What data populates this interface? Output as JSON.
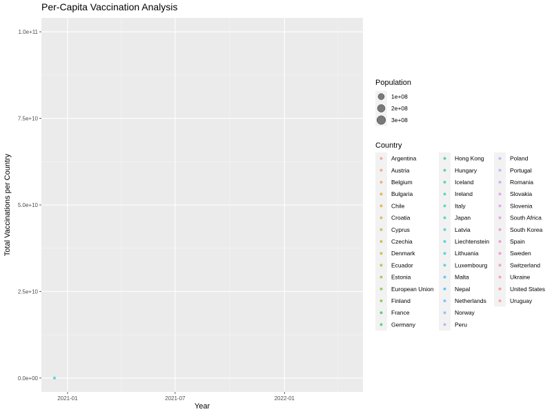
{
  "chart_data": {
    "type": "scatter",
    "title": "Per-Capita Vaccination Analysis",
    "xlabel": "Year",
    "ylabel": "Total Vaccinations per Country",
    "x_ticks": [
      "2021-01",
      "2021-07",
      "2022-01"
    ],
    "y_ticks": [
      "0.0e+00",
      "2.5e+10",
      "5.0e+10",
      "7.5e+10",
      "1.0e+11"
    ],
    "ylim": [
      0,
      100000000000
    ],
    "xlim": [
      "2020-11-18",
      "2022-05-13"
    ],
    "grid": true,
    "legend_position": "right",
    "points": [
      {
        "x": "2020-12-10",
        "y": 0,
        "country": "Liechtenstein"
      }
    ],
    "size_legend": {
      "title": "Population",
      "labels": [
        "1e+08",
        "2e+08",
        "3e+08"
      ]
    },
    "color_legend": {
      "title": "Country",
      "entries": [
        {
          "label": "Argentina",
          "color": "#F8766D"
        },
        {
          "label": "Austria",
          "color": "#F27D52"
        },
        {
          "label": "Belgium",
          "color": "#EA8331"
        },
        {
          "label": "Bulgaria",
          "color": "#E18A00"
        },
        {
          "label": "Chile",
          "color": "#D89000"
        },
        {
          "label": "Croatia",
          "color": "#CD9600"
        },
        {
          "label": "Cyprus",
          "color": "#C09B00"
        },
        {
          "label": "Czechia",
          "color": "#B3A000"
        },
        {
          "label": "Denmark",
          "color": "#A3A500"
        },
        {
          "label": "Ecuador",
          "color": "#93AA00"
        },
        {
          "label": "Estonia",
          "color": "#7FAE00"
        },
        {
          "label": "European Union",
          "color": "#68B200"
        },
        {
          "label": "Finland",
          "color": "#4BB600"
        },
        {
          "label": "France",
          "color": "#00B92A"
        },
        {
          "label": "Germany",
          "color": "#00BB4E"
        },
        {
          "label": "Hong Kong",
          "color": "#00BD65"
        },
        {
          "label": "Hungary",
          "color": "#00BF79"
        },
        {
          "label": "Iceland",
          "color": "#00C08B"
        },
        {
          "label": "Ireland",
          "color": "#00C19A"
        },
        {
          "label": "Italy",
          "color": "#00C1A9"
        },
        {
          "label": "Japan",
          "color": "#00C0B7"
        },
        {
          "label": "Latvia",
          "color": "#00BFC4"
        },
        {
          "label": "Liechtenstein",
          "color": "#00BDD0"
        },
        {
          "label": "Lithuania",
          "color": "#00BADB"
        },
        {
          "label": "Luxembourg",
          "color": "#00B6E6"
        },
        {
          "label": "Malta",
          "color": "#00B0F0"
        },
        {
          "label": "Nepal",
          "color": "#00A9FF"
        },
        {
          "label": "Netherlands",
          "color": "#35A2FF"
        },
        {
          "label": "Norway",
          "color": "#6D9AFF"
        },
        {
          "label": "Peru",
          "color": "#8E92FF"
        },
        {
          "label": "Poland",
          "color": "#A68AFF"
        },
        {
          "label": "Portugal",
          "color": "#B983FF"
        },
        {
          "label": "Romania",
          "color": "#C97CFF"
        },
        {
          "label": "Slovakia",
          "color": "#D675F8"
        },
        {
          "label": "Slovenia",
          "color": "#E170ED"
        },
        {
          "label": "South Africa",
          "color": "#EA6BE0"
        },
        {
          "label": "South Korea",
          "color": "#F166D1"
        },
        {
          "label": "Spain",
          "color": "#F765C0"
        },
        {
          "label": "Sweden",
          "color": "#FB64AD"
        },
        {
          "label": "Switzerland",
          "color": "#FD6699"
        },
        {
          "label": "Ukraine",
          "color": "#FE6A84"
        },
        {
          "label": "United States",
          "color": "#FC6E6E"
        },
        {
          "label": "Uruguay",
          "color": "#F8766D"
        }
      ]
    }
  }
}
